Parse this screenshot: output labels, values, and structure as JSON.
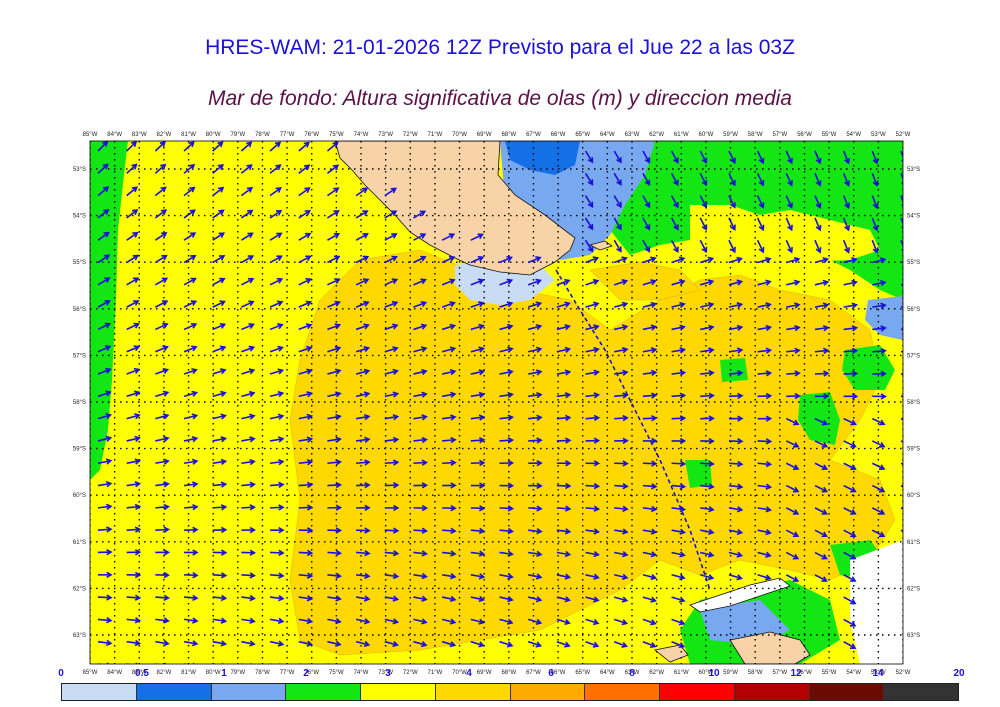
{
  "header": {
    "title": "HRES-WAM: 21-01-2026 12Z Previsto para el Jue 22 a las 03Z",
    "subtitle": "Mar de fondo: Altura significativa de olas (m) y direccion media"
  },
  "map": {
    "longitude_labels": [
      "85°W",
      "84°W",
      "83°W",
      "82°W",
      "81°W",
      "80°W",
      "79°W",
      "78°W",
      "77°W",
      "76°W",
      "75°W",
      "74°W",
      "73°W",
      "72°W",
      "71°W",
      "70°W",
      "69°W",
      "68°W",
      "67°W",
      "66°W",
      "65°W",
      "64°W",
      "63°W",
      "62°W",
      "61°W",
      "60°W",
      "59°W",
      "58°W",
      "57°W",
      "56°W",
      "55°W",
      "54°W",
      "53°W",
      "52°W"
    ],
    "latitude_labels": [
      "53°S",
      "54°S",
      "55°S",
      "56°S",
      "57°S",
      "58°S",
      "59°S",
      "60°S",
      "61°S",
      "62°S",
      "63°S"
    ],
    "colors": {
      "land": "#f8d3a8",
      "coast": "#111111",
      "arrow": "#1a10d8",
      "grid": "#000000"
    }
  },
  "colorbar": {
    "ticks": [
      "0",
      "0.5",
      "1",
      "2",
      "3",
      "4",
      "6",
      "8",
      "10",
      "12",
      "14",
      "20"
    ],
    "colors": [
      "#c8dcf4",
      "#1470e6",
      "#78a8f0",
      "#14e614",
      "#ffff00",
      "#ffd800",
      "#ffaa00",
      "#ff7000",
      "#ff0000",
      "#b40000",
      "#6a0a00",
      "#333333"
    ]
  }
}
